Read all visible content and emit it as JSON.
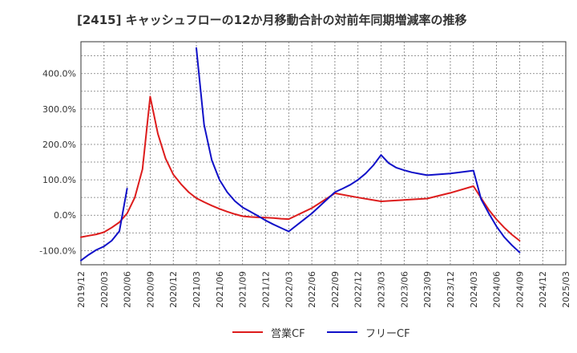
{
  "title": "[2415]  キャッシュフローの12か月移動合計の対前年同期増減率の推移",
  "chart_data": {
    "type": "line",
    "title": "[2415]  キャッシュフローの12か月移動合計の対前年同期増減率の推移",
    "xlabel": "",
    "ylabel": "",
    "x_ticks": [
      "2019/12",
      "2020/03",
      "2020/06",
      "2020/09",
      "2020/12",
      "2021/03",
      "2021/06",
      "2021/09",
      "2021/12",
      "2022/03",
      "2022/06",
      "2022/09",
      "2022/12",
      "2023/03",
      "2023/06",
      "2023/09",
      "2023/12",
      "2024/03",
      "2024/06",
      "2024/09",
      "2024/12",
      "2025/03"
    ],
    "y_ticks": [
      "-100.0%",
      "0.0%",
      "100.0%",
      "200.0%",
      "300.0%",
      "400.0%"
    ],
    "y_tick_values": [
      -100,
      0,
      100,
      200,
      300,
      400
    ],
    "ylim": [
      -140,
      490
    ],
    "grid": true,
    "legend_position": "bottom",
    "series": [
      {
        "name": "営業CF",
        "color": "#dd1c1c",
        "points": [
          [
            "2019/12",
            -62
          ],
          [
            "2020/01",
            -58
          ],
          [
            "2020/02",
            -54
          ],
          [
            "2020/03",
            -48
          ],
          [
            "2020/04",
            -35
          ],
          [
            "2020/05",
            -20
          ],
          [
            "2020/06",
            5
          ],
          [
            "2020/07",
            50
          ],
          [
            "2020/08",
            130
          ],
          [
            "2020/09",
            335
          ],
          [
            "2020/10",
            230
          ],
          [
            "2020/11",
            160
          ],
          [
            "2020/12",
            115
          ],
          [
            "2021/01",
            88
          ],
          [
            "2021/02",
            65
          ],
          [
            "2021/03",
            48
          ],
          [
            "2021/04",
            37
          ],
          [
            "2021/05",
            27
          ],
          [
            "2021/06",
            18
          ],
          [
            "2021/07",
            10
          ],
          [
            "2021/08",
            3
          ],
          [
            "2021/09",
            -3
          ],
          [
            "2021/10",
            -5
          ],
          [
            "2021/11",
            -6
          ],
          [
            "2021/12",
            -7
          ],
          [
            "2022/01",
            -8
          ],
          [
            "2022/02",
            -10
          ],
          [
            "2022/03",
            -11
          ],
          [
            "2022/06",
            20
          ],
          [
            "2022/09",
            62
          ],
          [
            "2022/12",
            50
          ],
          [
            "2023/03",
            39
          ],
          [
            "2023/06",
            43
          ],
          [
            "2023/09",
            47
          ],
          [
            "2023/12",
            63
          ],
          [
            "2024/03",
            82
          ],
          [
            "2024/04",
            48
          ],
          [
            "2024/05",
            15
          ],
          [
            "2024/06",
            -12
          ],
          [
            "2024/07",
            -35
          ],
          [
            "2024/08",
            -55
          ],
          [
            "2024/09",
            -72
          ]
        ]
      },
      {
        "name": "フリーCF",
        "color": "#1010c8",
        "segments": [
          [
            [
              "2019/12",
              -128
            ],
            [
              "2020/01",
              -112
            ],
            [
              "2020/02",
              -98
            ],
            [
              "2020/03",
              -88
            ],
            [
              "2020/04",
              -72
            ],
            [
              "2020/05",
              -45
            ],
            [
              "2020/06",
              75
            ]
          ],
          [
            [
              "2021/03",
              472
            ],
            [
              "2021/04",
              255
            ],
            [
              "2021/05",
              155
            ],
            [
              "2021/06",
              100
            ],
            [
              "2021/07",
              65
            ],
            [
              "2021/08",
              40
            ],
            [
              "2021/09",
              22
            ],
            [
              "2021/10",
              10
            ],
            [
              "2021/11",
              -2
            ],
            [
              "2021/12",
              -15
            ],
            [
              "2022/01",
              -26
            ],
            [
              "2022/02",
              -36
            ],
            [
              "2022/03",
              -46
            ],
            [
              "2022/06",
              5
            ],
            [
              "2022/09",
              65
            ],
            [
              "2022/10",
              75
            ],
            [
              "2022/11",
              86
            ],
            [
              "2022/12",
              100
            ],
            [
              "2023/01",
              118
            ],
            [
              "2023/02",
              141
            ],
            [
              "2023/03",
              170
            ],
            [
              "2023/04",
              147
            ],
            [
              "2023/05",
              134
            ],
            [
              "2023/06",
              127
            ],
            [
              "2023/07",
              121
            ],
            [
              "2023/08",
              117
            ],
            [
              "2023/09",
              113
            ],
            [
              "2023/12",
              118
            ],
            [
              "2024/03",
              126
            ],
            [
              "2024/04",
              45
            ],
            [
              "2024/05",
              5
            ],
            [
              "2024/06",
              -32
            ],
            [
              "2024/07",
              -62
            ],
            [
              "2024/08",
              -85
            ],
            [
              "2024/09",
              -105
            ]
          ]
        ]
      }
    ]
  }
}
